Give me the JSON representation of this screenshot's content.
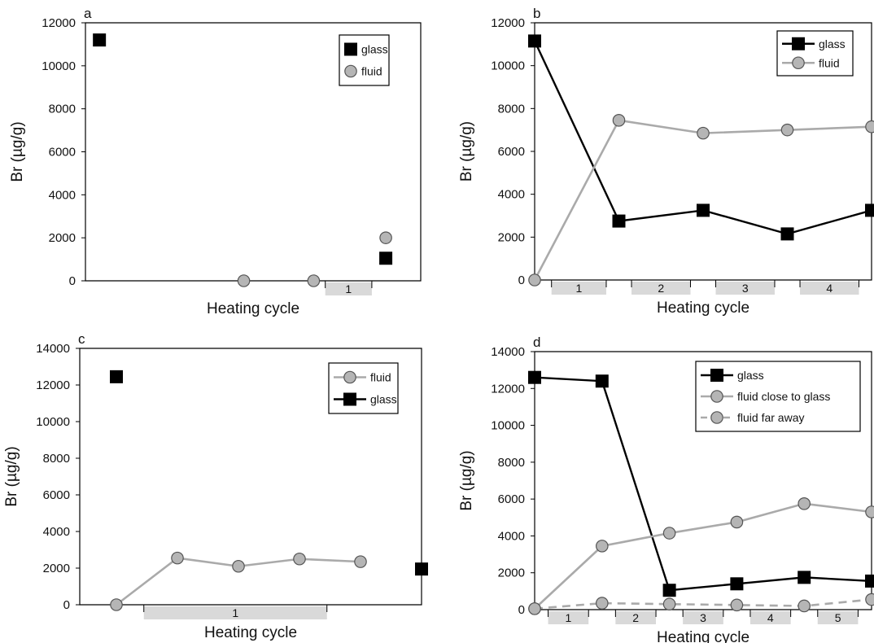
{
  "chart_data": [
    {
      "panel": "a",
      "type": "scatter",
      "ylabel": "Br (µg/g)",
      "xlabel": "Heating cycle",
      "ylim": [
        0,
        12000
      ],
      "yticks": [
        0,
        2000,
        4000,
        6000,
        8000,
        10000,
        12000
      ],
      "legend_position": "top-right",
      "legend_style": "marker",
      "cycles": [
        {
          "label": "1",
          "from": 5.15,
          "to": 6.15
        }
      ],
      "xlim": [
        0,
        7.2
      ],
      "series": [
        {
          "name": "glass",
          "marker": "square",
          "color": "#000000",
          "points": [
            [
              0.3,
              11200
            ],
            [
              6.45,
              1050
            ]
          ]
        },
        {
          "name": "fluid",
          "marker": "circle",
          "color": "#aaaaaa",
          "points": [
            [
              6.45,
              2000
            ],
            [
              3.4,
              0
            ],
            [
              4.9,
              0
            ]
          ]
        }
      ]
    },
    {
      "panel": "b",
      "type": "line",
      "ylabel": "Br (µg/g)",
      "xlabel": "Heating cycle",
      "ylim": [
        0,
        12000
      ],
      "yticks": [
        0,
        2000,
        4000,
        6000,
        8000,
        10000,
        12000
      ],
      "legend_position": "top-right",
      "legend_style": "line",
      "cycles": [
        {
          "label": "1",
          "from": 0.2,
          "to": 0.85
        },
        {
          "label": "2",
          "from": 1.15,
          "to": 1.85
        },
        {
          "label": "3",
          "from": 2.15,
          "to": 2.85
        },
        {
          "label": "4",
          "from": 3.15,
          "to": 3.85
        }
      ],
      "xlim": [
        0,
        4
      ],
      "series": [
        {
          "name": "glass",
          "marker": "square",
          "color": "#000000",
          "dash": false,
          "points": [
            [
              0,
              11150
            ],
            [
              1,
              2750
            ],
            [
              2,
              3250
            ],
            [
              3,
              2150
            ],
            [
              4,
              3250
            ]
          ]
        },
        {
          "name": "fluid",
          "marker": "circle",
          "color": "#aaaaaa",
          "dash": false,
          "points": [
            [
              0,
              0
            ],
            [
              1,
              7450
            ],
            [
              2,
              6850
            ],
            [
              3,
              7000
            ],
            [
              4,
              7150
            ]
          ]
        }
      ]
    },
    {
      "panel": "c",
      "type": "line",
      "ylabel": "Br (µg/g)",
      "xlabel": "Heating cycle",
      "ylim": [
        0,
        14000
      ],
      "yticks": [
        0,
        2000,
        4000,
        6000,
        8000,
        10000,
        12000,
        14000
      ],
      "legend_position": "top-right",
      "legend_style": "line",
      "cycles": [
        {
          "label": "1",
          "from": 1.05,
          "to": 4.05
        }
      ],
      "xlim": [
        0,
        5.6
      ],
      "series": [
        {
          "name": "fluid",
          "marker": "circle",
          "color": "#aaaaaa",
          "dash": false,
          "points": [
            [
              0.6,
              0
            ],
            [
              1.6,
              2550
            ],
            [
              2.6,
              2100
            ],
            [
              3.6,
              2500
            ],
            [
              4.6,
              2350
            ]
          ]
        },
        {
          "name": "glass",
          "marker": "square",
          "color": "#000000",
          "dash": false,
          "connect": false,
          "points": [
            [
              0.6,
              12450
            ],
            [
              5.6,
              1950
            ]
          ]
        }
      ]
    },
    {
      "panel": "d",
      "type": "line",
      "ylabel": "Br (µg/g)",
      "xlabel": "Heating cycle",
      "ylim": [
        0,
        14000
      ],
      "yticks": [
        0,
        2000,
        4000,
        6000,
        8000,
        10000,
        12000,
        14000
      ],
      "legend_position": "top-right",
      "legend_style": "line",
      "cycles": [
        {
          "label": "1",
          "from": 0.2,
          "to": 0.8
        },
        {
          "label": "2",
          "from": 1.2,
          "to": 1.8
        },
        {
          "label": "3",
          "from": 2.2,
          "to": 2.8
        },
        {
          "label": "4",
          "from": 3.2,
          "to": 3.8
        },
        {
          "label": "5",
          "from": 4.2,
          "to": 4.8
        }
      ],
      "xlim": [
        0,
        5
      ],
      "series": [
        {
          "name": "glass",
          "marker": "square",
          "color": "#000000",
          "dash": false,
          "points": [
            [
              0,
              12600
            ],
            [
              1,
              12400
            ],
            [
              2,
              1050
            ],
            [
              3,
              1400
            ],
            [
              4,
              1750
            ],
            [
              5,
              1550
            ]
          ]
        },
        {
          "name": "fluid close to glass",
          "marker": "circle",
          "color": "#aaaaaa",
          "dash": false,
          "points": [
            [
              0,
              50
            ],
            [
              1,
              3450
            ],
            [
              2,
              4150
            ],
            [
              3,
              4750
            ],
            [
              4,
              5750
            ],
            [
              5,
              5300
            ]
          ]
        },
        {
          "name": "fluid far away",
          "marker": "circle",
          "color": "#aaaaaa",
          "dash": true,
          "points": [
            [
              0,
              50
            ],
            [
              1,
              350
            ],
            [
              2,
              300
            ],
            [
              3,
              250
            ],
            [
              4,
              200
            ],
            [
              5,
              550
            ]
          ]
        }
      ]
    }
  ]
}
